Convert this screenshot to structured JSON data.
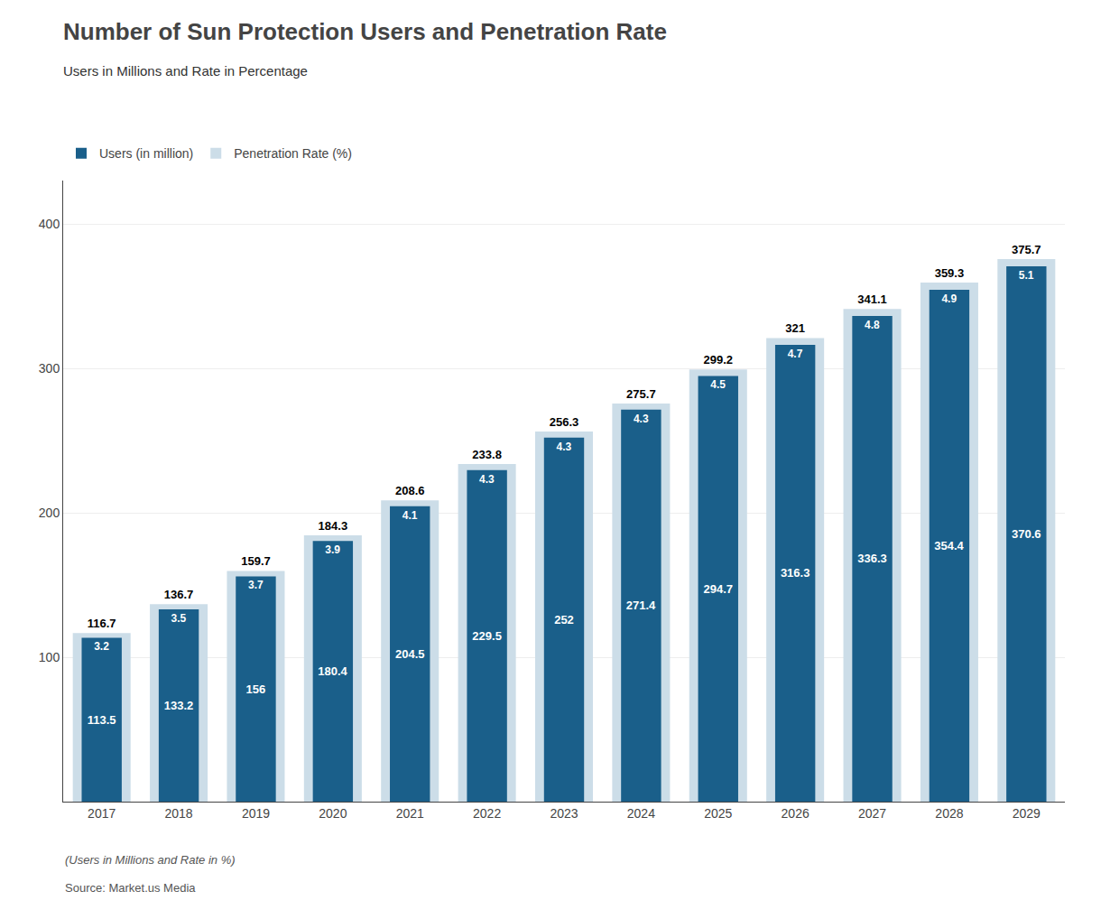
{
  "chart_data": {
    "type": "bar",
    "title": "Number of Sun Protection Users and Penetration Rate",
    "subtitle": "Users in Millions and Rate in Percentage",
    "categories": [
      "2017",
      "2018",
      "2019",
      "2020",
      "2021",
      "2022",
      "2023",
      "2024",
      "2025",
      "2026",
      "2027",
      "2028",
      "2029"
    ],
    "series": [
      {
        "name": "Users (in million)",
        "color": "#1a5f8a",
        "values": [
          113.5,
          133.2,
          156.0,
          180.4,
          204.5,
          229.5,
          252.0,
          271.4,
          294.7,
          316.3,
          336.3,
          354.4,
          370.6
        ],
        "penetration": [
          3.2,
          3.5,
          3.7,
          3.9,
          4.1,
          4.3,
          4.3,
          4.3,
          4.5,
          4.7,
          4.8,
          4.9,
          5.1
        ]
      },
      {
        "name": "Penetration Rate (%)",
        "color": "#ccdde8",
        "values": [
          116.7,
          136.7,
          159.7,
          184.3,
          208.6,
          233.8,
          256.3,
          275.7,
          299.2,
          321,
          341.1,
          359.3,
          375.7
        ]
      }
    ],
    "ylim": [
      0,
      430
    ],
    "yticks": [
      100,
      200,
      300,
      400
    ],
    "grid": true,
    "legend": "top left",
    "data_labels": true,
    "annotations": [
      "(Users in Millions and Rate in %)",
      "Source: Market.us Media"
    ]
  }
}
